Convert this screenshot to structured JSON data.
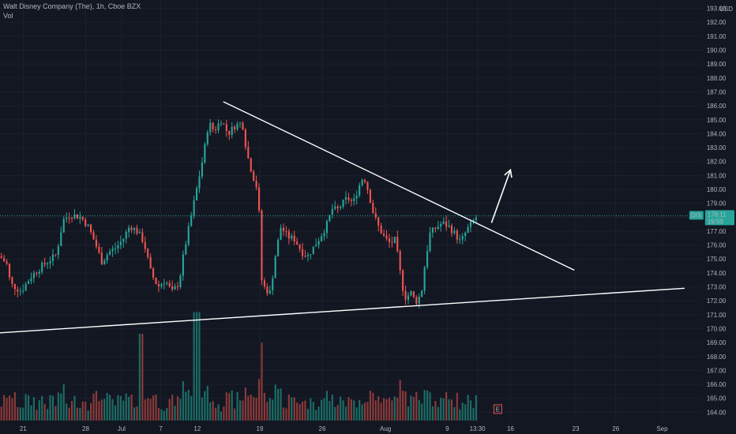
{
  "header": {
    "title": "Walt Disney Company (The), 1h, Cboe BZX",
    "volume_label": "Vol"
  },
  "price_axis": {
    "currency": "USD"
  },
  "colors": {
    "background": "#131722",
    "grid": "#1c2030",
    "up": "#26a69a",
    "down": "#ef5350",
    "up_volume": "#1b6e66",
    "down_volume": "#8d3a3a",
    "text": "#b2b5be",
    "trendline": "#ffffff",
    "last_price_badge": "#26a69a"
  },
  "chart_data": {
    "type": "candlestick",
    "symbol": "DIS",
    "interval": "1h",
    "y_ticks": [
      164,
      165,
      166,
      167,
      168,
      169,
      170,
      171,
      172,
      173,
      174,
      175,
      176,
      177,
      178,
      179,
      180,
      181,
      182,
      183,
      184,
      185,
      186,
      187,
      188,
      189,
      190,
      191,
      192,
      193
    ],
    "ylim": [
      163.4,
      193.6
    ],
    "x_ticks": [
      {
        "label": "21",
        "pos": 0.033
      },
      {
        "label": "28",
        "pos": 0.122
      },
      {
        "label": "Jul",
        "pos": 0.173
      },
      {
        "label": "7",
        "pos": 0.229
      },
      {
        "label": "12",
        "pos": 0.281
      },
      {
        "label": "19",
        "pos": 0.37
      },
      {
        "label": "26",
        "pos": 0.459
      },
      {
        "label": "Aug",
        "pos": 0.549
      },
      {
        "label": "9",
        "pos": 0.637
      },
      {
        "label": "13:30",
        "pos": 0.68
      },
      {
        "label": "16",
        "pos": 0.727
      },
      {
        "label": "23",
        "pos": 0.82
      },
      {
        "label": "26",
        "pos": 0.877
      },
      {
        "label": "Sep",
        "pos": 0.943
      }
    ],
    "last_price": 178.11,
    "last_price_label": "178.11",
    "countdown_label": "19:59",
    "symbol_tag": "DIS",
    "earnings_marker": "E",
    "earnings_pos": 0.709,
    "candle_range": [
      0.0,
      0.68
    ],
    "close_path": [
      [
        0.0,
        175.2
      ],
      [
        0.01,
        174.6
      ],
      [
        0.015,
        173.2
      ],
      [
        0.03,
        172.7
      ],
      [
        0.045,
        173.8
      ],
      [
        0.06,
        174.5
      ],
      [
        0.08,
        175.3
      ],
      [
        0.09,
        177.8
      ],
      [
        0.1,
        178.2
      ],
      [
        0.115,
        178.0
      ],
      [
        0.125,
        177.4
      ],
      [
        0.135,
        176.2
      ],
      [
        0.145,
        174.8
      ],
      [
        0.155,
        175.5
      ],
      [
        0.165,
        175.8
      ],
      [
        0.175,
        176.4
      ],
      [
        0.185,
        177.4
      ],
      [
        0.195,
        177.0
      ],
      [
        0.205,
        176.2
      ],
      [
        0.215,
        174.0
      ],
      [
        0.225,
        173.0
      ],
      [
        0.235,
        173.5
      ],
      [
        0.245,
        172.6
      ],
      [
        0.255,
        173.3
      ],
      [
        0.262,
        175.5
      ],
      [
        0.27,
        177.5
      ],
      [
        0.28,
        180.0
      ],
      [
        0.29,
        182.5
      ],
      [
        0.297,
        184.8
      ],
      [
        0.305,
        184.2
      ],
      [
        0.315,
        185.0
      ],
      [
        0.325,
        184.0
      ],
      [
        0.335,
        184.6
      ],
      [
        0.345,
        184.8
      ],
      [
        0.352,
        182.5
      ],
      [
        0.36,
        181.0
      ],
      [
        0.368,
        179.8
      ],
      [
        0.372,
        173.6
      ],
      [
        0.378,
        172.8
      ],
      [
        0.385,
        172.6
      ],
      [
        0.392,
        175.2
      ],
      [
        0.4,
        177.3
      ],
      [
        0.41,
        176.6
      ],
      [
        0.42,
        176.4
      ],
      [
        0.43,
        175.5
      ],
      [
        0.438,
        175.2
      ],
      [
        0.446,
        175.8
      ],
      [
        0.455,
        176.5
      ],
      [
        0.465,
        177.4
      ],
      [
        0.473,
        178.6
      ],
      [
        0.48,
        178.5
      ],
      [
        0.488,
        179.0
      ],
      [
        0.495,
        179.4
      ],
      [
        0.503,
        179.0
      ],
      [
        0.51,
        180.1
      ],
      [
        0.518,
        181.0
      ],
      [
        0.525,
        179.8
      ],
      [
        0.532,
        178.2
      ],
      [
        0.54,
        177.2
      ],
      [
        0.548,
        176.5
      ],
      [
        0.556,
        176.1
      ],
      [
        0.562,
        176.4
      ],
      [
        0.568,
        174.8
      ],
      [
        0.572,
        173.2
      ],
      [
        0.578,
        172.2
      ],
      [
        0.585,
        172.6
      ],
      [
        0.592,
        171.9
      ],
      [
        0.6,
        172.5
      ],
      [
        0.605,
        174.6
      ],
      [
        0.612,
        176.8
      ],
      [
        0.62,
        177.2
      ],
      [
        0.63,
        177.6
      ],
      [
        0.64,
        177.3
      ],
      [
        0.648,
        176.8
      ],
      [
        0.656,
        176.2
      ],
      [
        0.664,
        177.0
      ],
      [
        0.672,
        177.6
      ],
      [
        0.68,
        178.1
      ]
    ],
    "volume_baseline": 0.14,
    "trendlines": [
      {
        "name": "descending-resistance",
        "from": [
          0.318,
          186.3
        ],
        "to": [
          0.818,
          174.2
        ]
      },
      {
        "name": "rising-support",
        "from": [
          0.0,
          169.7
        ],
        "to": [
          0.975,
          172.9
        ]
      }
    ],
    "projection_arrow": {
      "from": [
        0.7,
        177.6
      ],
      "to": [
        0.727,
        181.4
      ]
    }
  }
}
